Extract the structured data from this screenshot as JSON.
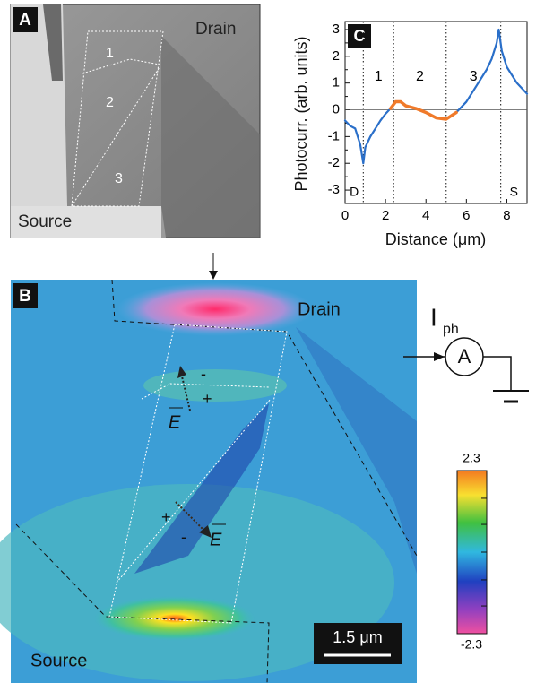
{
  "panels": {
    "a": {
      "label": "A",
      "drain": "Drain",
      "source": "Source",
      "regions": [
        "1",
        "2",
        "3"
      ]
    },
    "b": {
      "label": "B",
      "drain": "Drain",
      "source": "Source",
      "plus": "+",
      "minus": "-",
      "field": "E",
      "scale_bar": "1.5 μm",
      "colorbar": {
        "max": 2.3,
        "min": -2.3
      }
    },
    "circuit": {
      "current": "I",
      "current_sub": "ph",
      "meter": "A"
    }
  },
  "chart_data": {
    "type": "line",
    "panel_label": "C",
    "xlabel": "Distance (μm)",
    "ylabel": "Photocurr. (arb. units)",
    "region_labels": [
      "D",
      "1",
      "2",
      "3",
      "S"
    ],
    "boundaries": [
      0.9,
      2.4,
      5,
      7.7
    ],
    "zero_line": true,
    "xlim": [
      0,
      9
    ],
    "ylim": [
      -3.5,
      3.3
    ],
    "xticks": [
      0,
      2,
      4,
      6,
      8
    ],
    "yticks": [
      -3,
      -2.5,
      -2,
      -1.5,
      -1,
      -0.5,
      0,
      0.5,
      1,
      1.5,
      2,
      2.5,
      3
    ],
    "ytick_labels_every": 2,
    "x": [
      0,
      0.25,
      0.5,
      0.75,
      0.9,
      1.0,
      1.25,
      1.5,
      1.75,
      2.0,
      2.25,
      2.5,
      2.75,
      3.0,
      3.5,
      4.0,
      4.5,
      5.0,
      5.5,
      6.0,
      6.5,
      7.0,
      7.25,
      7.5,
      7.6,
      7.75,
      8.0,
      8.5,
      9.0
    ],
    "series": [
      {
        "color": "#2a6fc9",
        "values": [
          -0.4,
          -0.6,
          -0.7,
          -1.3,
          -2.0,
          -1.4,
          -1.0,
          -0.7,
          -0.4,
          -0.15,
          0.05,
          null,
          null,
          null,
          null,
          null,
          null,
          null,
          -0.1,
          0.3,
          0.9,
          1.5,
          1.9,
          2.5,
          3.0,
          2.2,
          1.6,
          1.0,
          0.6
        ]
      },
      {
        "color": "#f07a2a",
        "values": [
          null,
          null,
          null,
          null,
          null,
          null,
          null,
          null,
          null,
          null,
          0.05,
          0.3,
          0.3,
          0.15,
          0.05,
          -0.1,
          -0.3,
          -0.35,
          -0.1,
          null,
          null,
          null,
          null,
          null,
          null,
          null,
          null,
          null,
          null
        ]
      }
    ]
  }
}
